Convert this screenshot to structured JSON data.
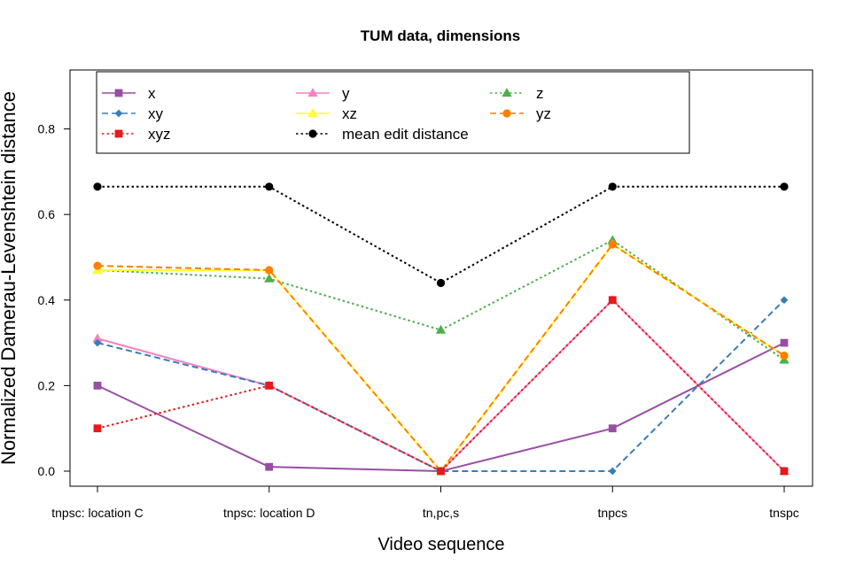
{
  "chart_data": {
    "type": "line",
    "title": "TUM data, dimensions",
    "xlabel": "Video sequence",
    "ylabel": "Normalized Damerau-Levenshtein distance",
    "categories": [
      "tnpsc: location C",
      "tnpsc: location D",
      "tn,pc,s",
      "tnpcs",
      "tnspc"
    ],
    "ylim": [
      -0.03,
      0.93
    ],
    "yticks": [
      "0.0",
      "0.2",
      "0.4",
      "0.6",
      "0.8"
    ],
    "legend_position": "top-left inside plot",
    "series": [
      {
        "name": "x",
        "color": "#984EA3",
        "dash": "solid",
        "marker": "square",
        "values": [
          0.2,
          0.01,
          0.0,
          0.1,
          0.3
        ]
      },
      {
        "name": "y",
        "color": "#F781BF",
        "dash": "solid",
        "marker": "triangle",
        "values": [
          0.31,
          0.2,
          0.0,
          0.4,
          0.0
        ]
      },
      {
        "name": "z",
        "color": "#4DAF4A",
        "dash": "dotted",
        "marker": "triangle",
        "values": [
          0.47,
          0.45,
          0.33,
          0.54,
          0.26
        ]
      },
      {
        "name": "xy",
        "color": "#377EB8",
        "dash": "dashed",
        "marker": "diamond",
        "values": [
          0.3,
          0.2,
          0.0,
          0.0,
          0.4
        ]
      },
      {
        "name": "xz",
        "color": "#FFFF33",
        "dash": "solid",
        "marker": "triangle",
        "values": [
          0.47,
          0.47,
          0.0,
          0.53,
          0.27
        ]
      },
      {
        "name": "yz",
        "color": "#FF7F00",
        "dash": "dashed",
        "marker": "circle",
        "values": [
          0.48,
          0.47,
          0.0,
          0.53,
          0.27
        ]
      },
      {
        "name": "xyz",
        "color": "#E41A1C",
        "dash": "dotted",
        "marker": "square",
        "values": [
          0.1,
          0.2,
          0.0,
          0.4,
          0.0
        ]
      },
      {
        "name": "mean edit distance",
        "color": "#000000",
        "dash": "dotted",
        "marker": "circle",
        "values": [
          0.665,
          0.665,
          0.44,
          0.665,
          0.665
        ]
      }
    ],
    "legend_order": [
      "x",
      "xy",
      "xyz",
      "y",
      "xz",
      "mean edit distance",
      "z",
      "yz"
    ]
  }
}
